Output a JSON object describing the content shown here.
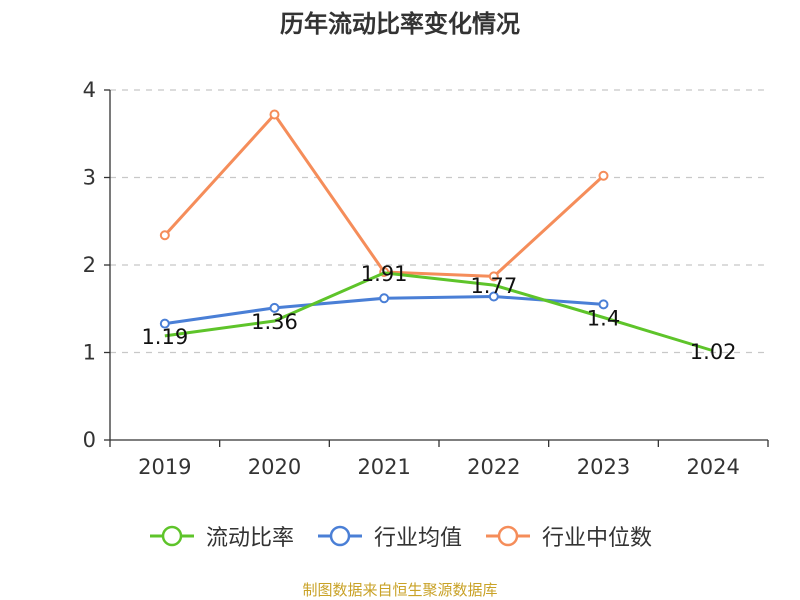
{
  "chart_data": {
    "type": "line",
    "title": "历年流动比率变化情况",
    "categories": [
      "2019",
      "2020",
      "2021",
      "2022",
      "2023",
      "2024"
    ],
    "ylim": [
      0,
      4
    ],
    "yticks": [
      0,
      1,
      2,
      3,
      4
    ],
    "grid": true,
    "legend_position": "bottom",
    "series": [
      {
        "name": "流动比率",
        "color": "#5ec42a",
        "values": [
          1.19,
          1.36,
          1.91,
          1.77,
          1.4,
          1.02
        ],
        "labels": [
          "1.19",
          "1.36",
          "1.91",
          "1.77",
          "1.4",
          "1.02"
        ],
        "show_markers": false
      },
      {
        "name": "行业均值",
        "color": "#4a7fd6",
        "values": [
          1.33,
          1.51,
          1.62,
          1.64,
          1.55,
          null
        ],
        "show_markers": true
      },
      {
        "name": "行业中位数",
        "color": "#f58d5a",
        "values": [
          2.34,
          3.72,
          1.92,
          1.87,
          3.02,
          null
        ],
        "show_markers": true
      }
    ]
  },
  "source_note": "制图数据来自恒生聚源数据库"
}
